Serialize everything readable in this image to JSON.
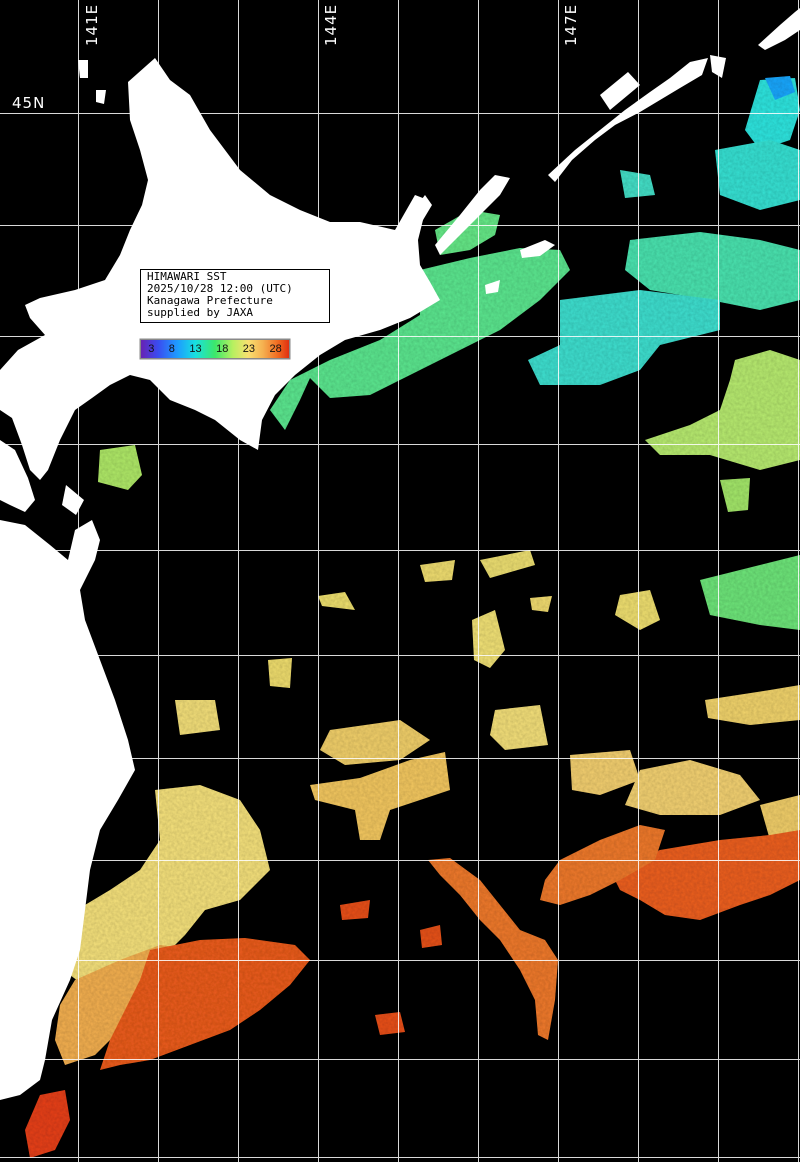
{
  "map": {
    "title": "HIMAWARI SST",
    "datetime": "2025/10/28 12:00 (UTC)",
    "region": "Kanagawa Prefecture",
    "credit": "supplied by JAXA",
    "lon_labels": [
      "141E",
      "144E",
      "147E"
    ],
    "lat_labels": [
      "45N"
    ],
    "colorbar_ticks": [
      "3",
      "8",
      "13",
      "18",
      "23",
      "28"
    ],
    "colors": {
      "background": "#000000",
      "land": "#ffffff",
      "grid": "#ffffff",
      "sst_scale": [
        "#6a1fb0",
        "#1e8cff",
        "#18e0e0",
        "#3de86a",
        "#b8f060",
        "#f8e070",
        "#f5b050",
        "#f06a20",
        "#e02a10"
      ]
    }
  }
}
